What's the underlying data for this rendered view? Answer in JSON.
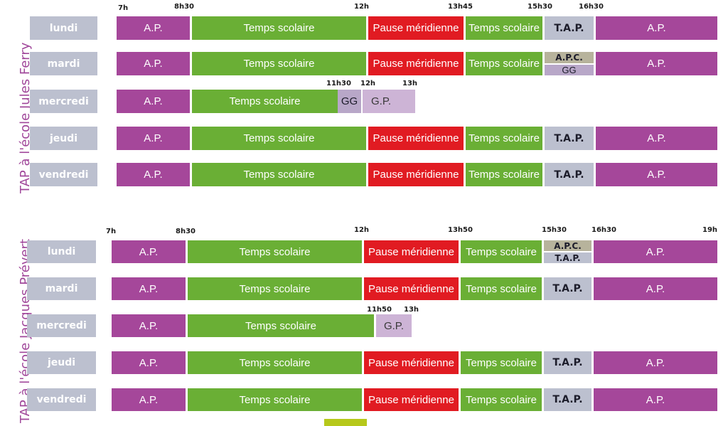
{
  "schools": [
    {
      "title": "TAP à l'école Jules Ferry",
      "times": [
        "7h",
        "8h30",
        "12h",
        "13h45",
        "15h30",
        "16h30",
        "11h30",
        "12h",
        "13h"
      ],
      "days": [
        "lundi",
        "mardi",
        "mercredi",
        "jeudi",
        "vendredi"
      ],
      "labels": {
        "ap": "A.P.",
        "ts": "Temps scolaire",
        "pm": "Pause méridienne",
        "tap": "T.A.P.",
        "apc": "A.P.C.",
        "gg": "GG",
        "gp": "G.P."
      }
    },
    {
      "title": "TAP à l'école Jacques Prévert",
      "times": [
        "7h",
        "8h30",
        "12h",
        "13h50",
        "15h30",
        "16h30",
        "19h",
        "11h50",
        "13h"
      ],
      "days": [
        "lundi",
        "mardi",
        "mercredi",
        "jeudi",
        "vendredi"
      ],
      "labels": {
        "ap": "A.P.",
        "ts": "Temps scolaire",
        "pm": "Pause méridienne",
        "tap": "T.A.P.",
        "apc": "A.P.C.",
        "gp": "G.P."
      }
    }
  ],
  "colors": {
    "ap": "#a5479a",
    "ts": "#6aaf35",
    "pm": "#e11b22",
    "tap": "#bcc0cf",
    "gp": "#cdb4d6",
    "apc": "#b7b39c",
    "accent": "#b6c81b"
  }
}
